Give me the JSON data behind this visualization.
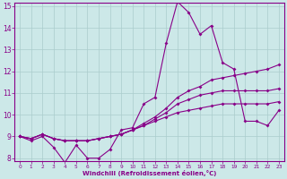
{
  "x": [
    0,
    1,
    2,
    3,
    4,
    5,
    6,
    7,
    8,
    9,
    10,
    11,
    12,
    13,
    14,
    15,
    16,
    17,
    18,
    19,
    20,
    21,
    22,
    23
  ],
  "line1": [
    9.0,
    8.8,
    9.0,
    8.5,
    7.8,
    8.6,
    8.0,
    8.0,
    8.4,
    9.3,
    9.4,
    10.5,
    10.8,
    13.3,
    15.2,
    14.7,
    13.7,
    14.1,
    12.4,
    12.1,
    9.7,
    9.7,
    9.5,
    10.2
  ],
  "line2": [
    9.0,
    8.9,
    9.1,
    8.9,
    8.8,
    8.8,
    8.8,
    8.9,
    9.0,
    9.1,
    9.3,
    9.6,
    9.9,
    10.3,
    10.8,
    11.1,
    11.3,
    11.6,
    11.7,
    11.8,
    11.9,
    12.0,
    12.1,
    12.3
  ],
  "line3": [
    9.0,
    8.9,
    9.1,
    8.9,
    8.8,
    8.8,
    8.8,
    8.9,
    9.0,
    9.1,
    9.3,
    9.5,
    9.8,
    10.1,
    10.5,
    10.7,
    10.9,
    11.0,
    11.1,
    11.1,
    11.1,
    11.1,
    11.1,
    11.2
  ],
  "line4": [
    9.0,
    8.9,
    9.1,
    8.9,
    8.8,
    8.8,
    8.8,
    8.9,
    9.0,
    9.1,
    9.3,
    9.5,
    9.7,
    9.9,
    10.1,
    10.2,
    10.3,
    10.4,
    10.5,
    10.5,
    10.5,
    10.5,
    10.5,
    10.6
  ],
  "line_color": "#880088",
  "bg_color": "#cce8e8",
  "grid_color": "#aacccc",
  "xlabel": "Windchill (Refroidissement éolien,°C)",
  "ylim": [
    8,
    15
  ],
  "xlim": [
    -0.5,
    23.5
  ],
  "yticks": [
    8,
    9,
    10,
    11,
    12,
    13,
    14,
    15
  ],
  "xticks": [
    0,
    1,
    2,
    3,
    4,
    5,
    6,
    7,
    8,
    9,
    10,
    11,
    12,
    13,
    14,
    15,
    16,
    17,
    18,
    19,
    20,
    21,
    22,
    23
  ]
}
